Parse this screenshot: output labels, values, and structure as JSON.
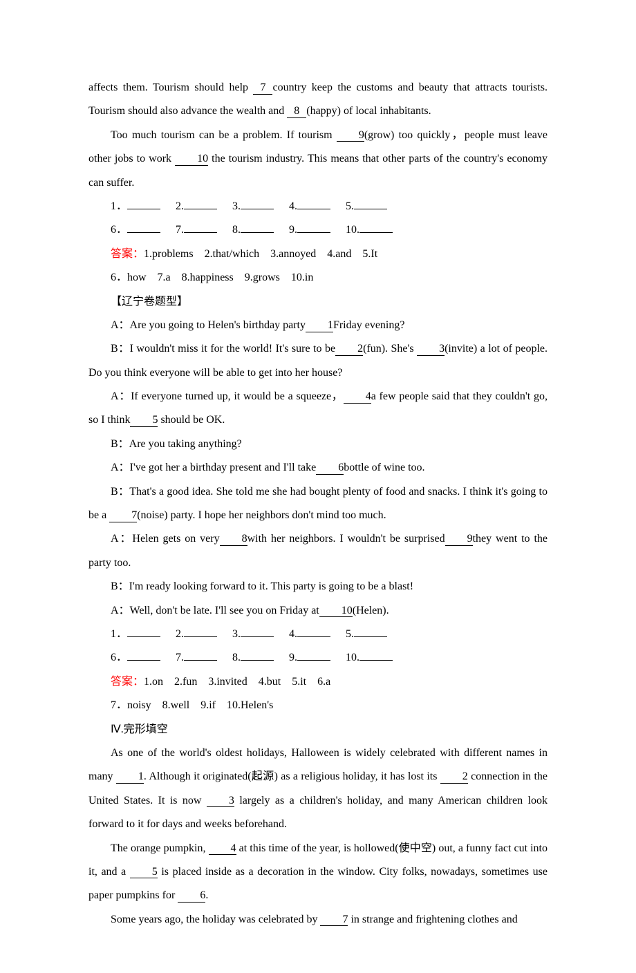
{
  "colors": {
    "text": "#000000",
    "answer_label": "#ff0000",
    "background": "#ffffff"
  },
  "typography": {
    "font_family": "Times New Roman / SimSun",
    "font_size_pt": 12,
    "line_height": 2.15
  },
  "passage1": {
    "line1_a": "affects them. Tourism should help ",
    "blank7": "7",
    "line1_b": "country keep the customs and beauty that attracts tourists. Tourism should also advance the wealth and ",
    "blank8": "8",
    "line1_c": "(happy) of local inhabitants.",
    "line2_a": "Too much tourism can be a problem. If tourism ",
    "blank9": "9",
    "line2_b": "(grow) too quickly，people must leave other jobs to work ",
    "blank10": "10",
    "line2_c": " the tourism industry. This means that other parts of the country's economy can suffer.",
    "blanks_row1": [
      "1．",
      "2.",
      "3.",
      "4.",
      "5."
    ],
    "blanks_row2": [
      "6．",
      "7.",
      "8.",
      "9.",
      "10."
    ],
    "answer_label": "答案：",
    "answers_row1": "1.problems　2.that/which　3.annoyed　4.and　5.It",
    "answers_row2": "6．how　7.a　8.happiness　9.grows　10.in"
  },
  "section2_title": "【辽宁卷题型】",
  "dialogue": {
    "a1_a": "A：Are you going to Helen's birthday party",
    "b1": "1",
    "a1_b": "Friday evening?",
    "b1line_a": "B：I wouldn't miss it for the world! It's sure to be",
    "b2": "2",
    "b1line_b": "(fun). She's ",
    "b3": "3",
    "b1line_c": "(invite) a lot of people. Do you think everyone will be able to get into her house?",
    "a2_a": "A：If everyone turned up, it would be a squeeze，",
    "b4": "4",
    "a2_b": "a few people said that they couldn't go, so I think",
    "b5": "5",
    "a2_c": " should be OK.",
    "b2line": "B：Are you taking anything?",
    "a3_a": "A：I've got her a birthday present and I'll take",
    "b6": "6",
    "a3_b": "bottle of wine too.",
    "b3line_a": "B：That's a good idea. She told me she had bought plenty of food and snacks. I think it's going to be a ",
    "b7": "7",
    "b3line_b": "(noise) party. I hope her neighbors don't mind too much.",
    "a4_a": "A：Helen gets on very",
    "b8": "8",
    "a4_b": "with her neighbors. I wouldn't be surprised",
    "b9": "9",
    "a4_c": "they went to the party too.",
    "b4line": "B：I'm ready looking forward to it. This party is going to be a blast!",
    "a5_a": "A：Well, don't be late. I'll see you on Friday at",
    "b10": "10",
    "a5_b": "(Helen).",
    "blanks_row1": [
      "1．",
      "2.",
      "3.",
      "4.",
      "5."
    ],
    "blanks_row2": [
      "6．",
      "7.",
      "8.",
      "9.",
      "10."
    ],
    "answer_label": "答案：",
    "answers_row1": "1.on　2.fun　3.invited　4.but　5.it　6.a",
    "answers_row2": "7．noisy　8.well　9.if　10.Helen's"
  },
  "section3_title": "Ⅳ.完形填空",
  "cloze": {
    "p1_a": "As one of the world's oldest holidays, Halloween is widely celebrated with different names in many ",
    "b1": "1",
    "p1_b": ". Although it originated(起源) as a religious holiday, it has lost its ",
    "b2": "2",
    "p1_c": " connection in the United States. It is now ",
    "b3": "3",
    "p1_d": " largely as a children's holiday, and many American children look forward to it for days and weeks beforehand.",
    "p2_a": "The orange pumpkin, ",
    "b4": "4",
    "p2_b": " at this time of the year, is hollowed(使中空) out, a funny fact cut into it, and a ",
    "b5": "5",
    "p2_c": " is placed inside as a decoration in the window. City folks, nowadays, sometimes use paper pumpkins for ",
    "b6": "6",
    "p2_d": ".",
    "p3_a": "Some years ago, the holiday was celebrated by ",
    "b7": "7",
    "p3_b": " in strange and frightening clothes and"
  }
}
